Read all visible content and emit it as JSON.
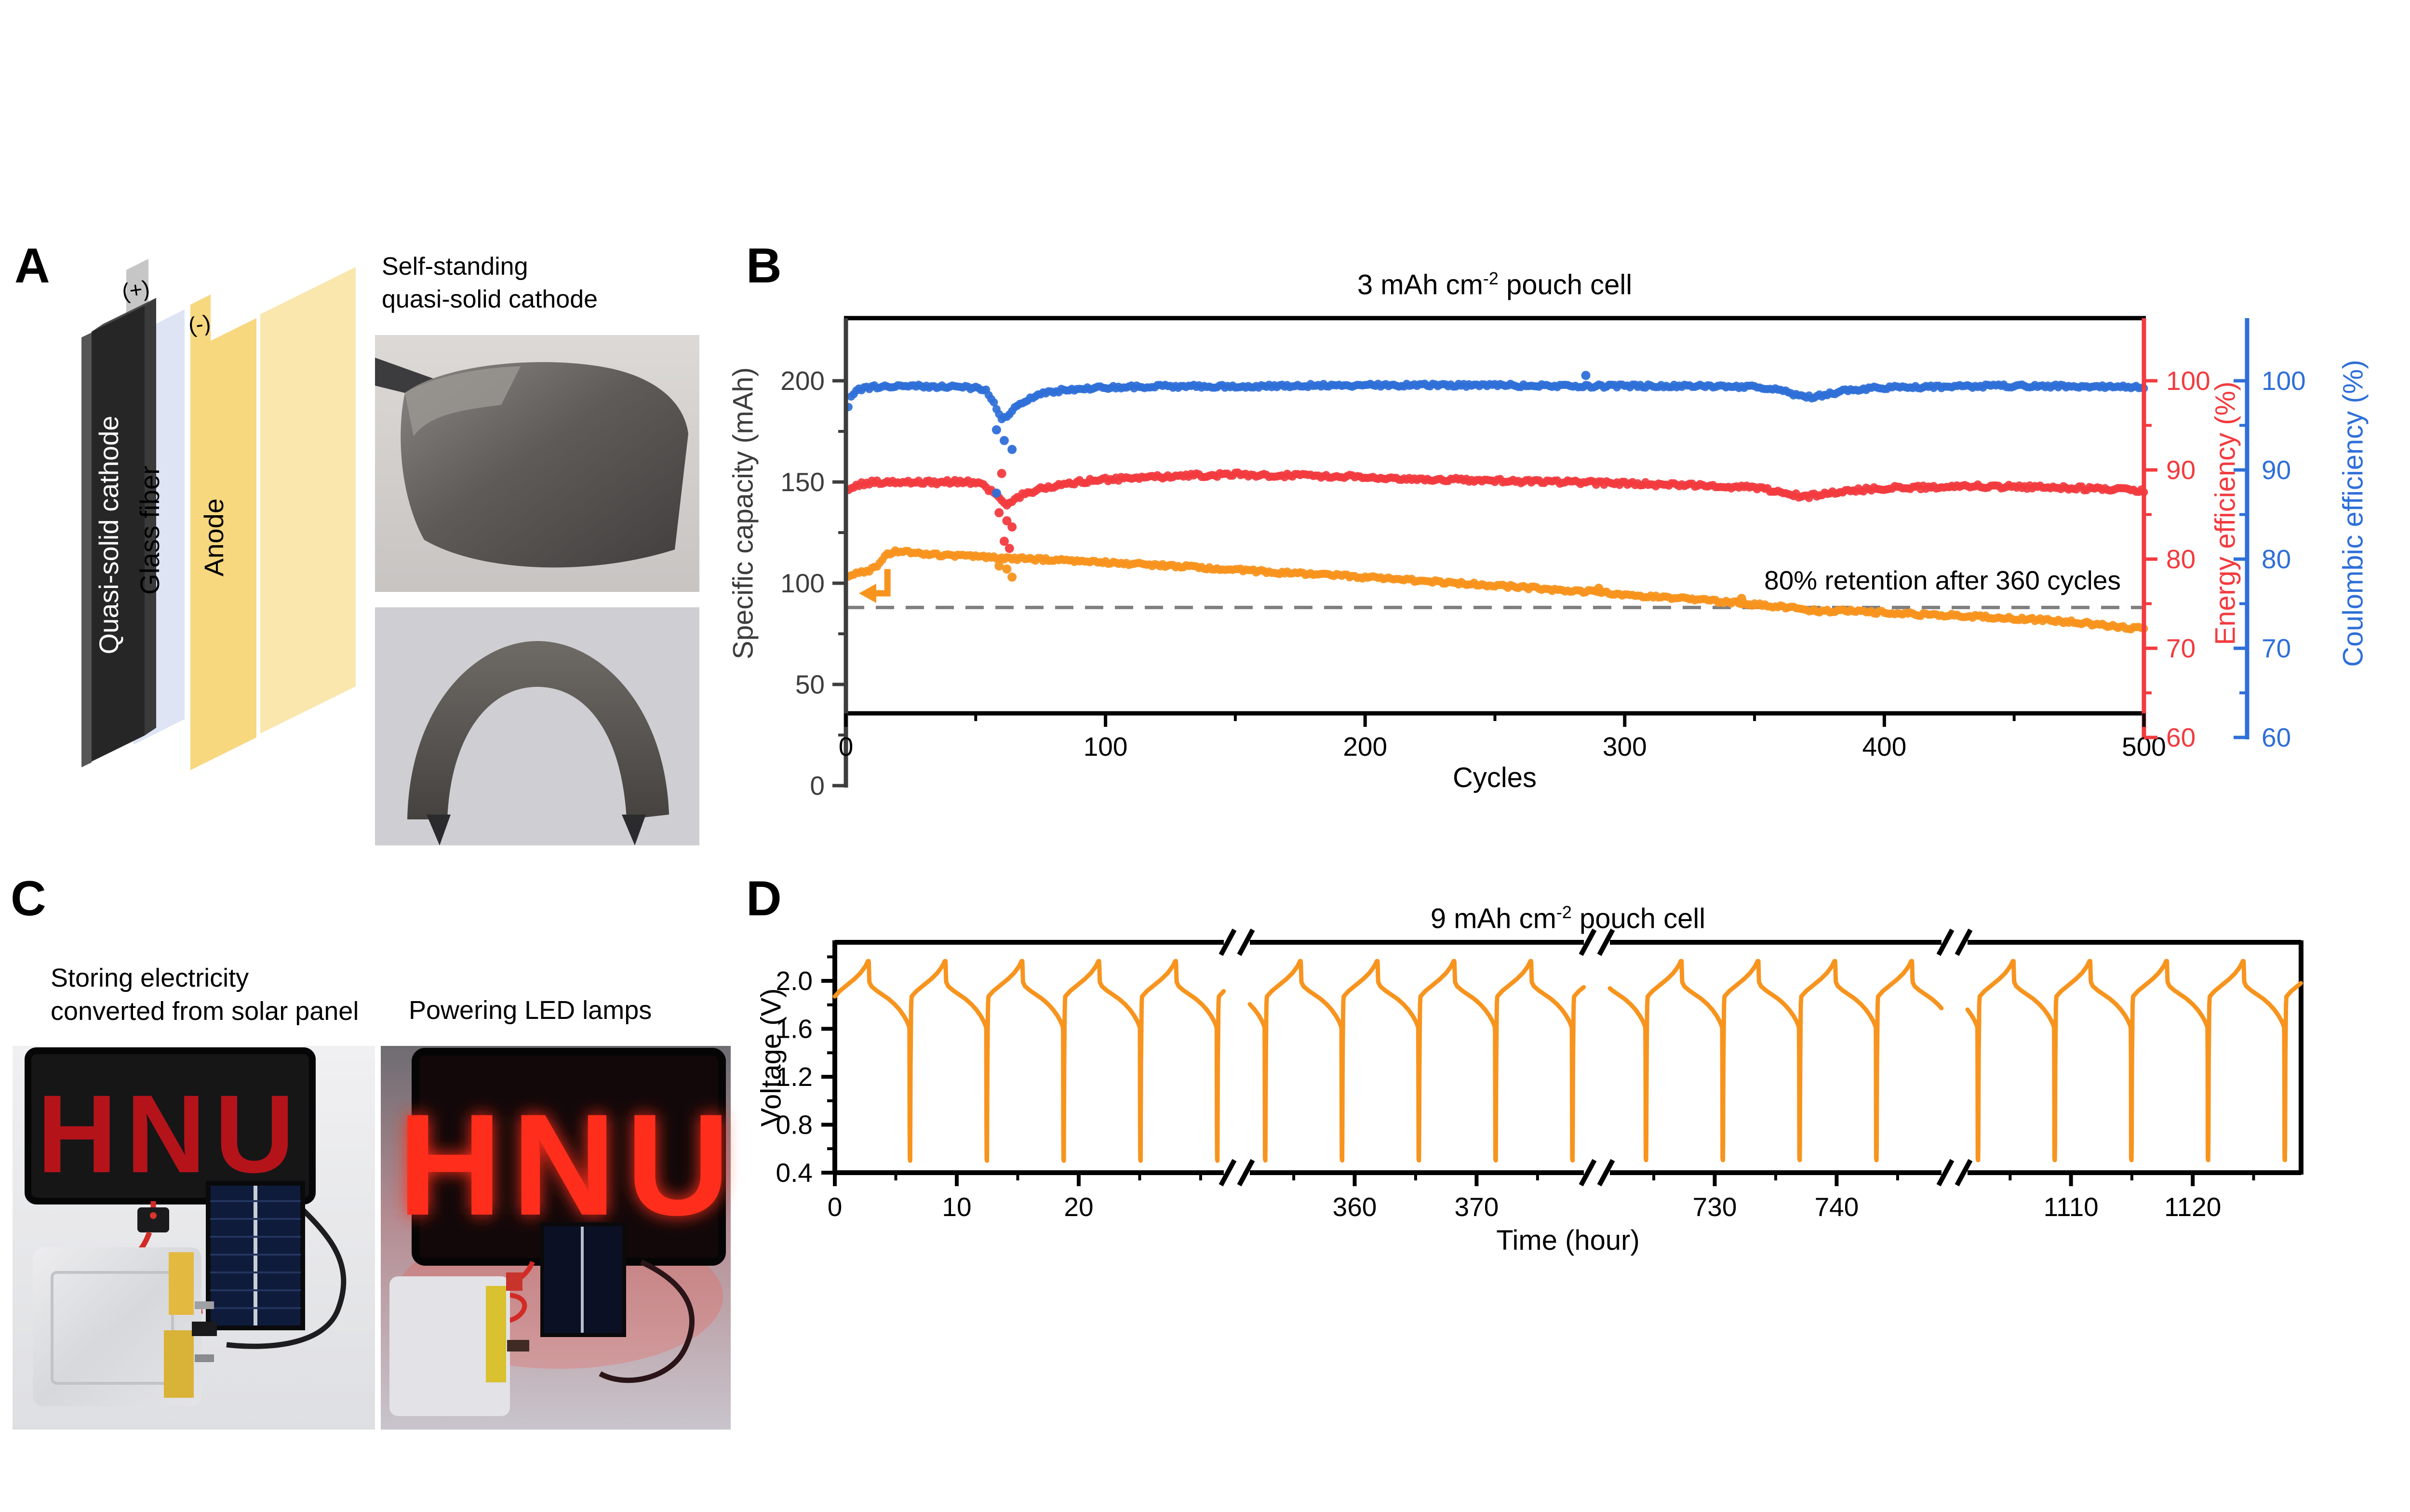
{
  "panels": {
    "a": {
      "letter": "A",
      "schematic": {
        "cathode": "Quasi-solid cathode",
        "separator": "Glass fiber",
        "anode": "Anode",
        "pos": "(+)",
        "neg": "(-)"
      },
      "caption1": "Self-standing",
      "caption2": "quasi-solid cathode"
    },
    "b": {
      "letter": "B"
    },
    "c": {
      "letter": "C",
      "caption1": "Storing electricity",
      "caption2": "converted from solar panel",
      "caption_right": "Powering LED lamps",
      "led_text": "HNU"
    },
    "d": {
      "letter": "D"
    }
  },
  "colors": {
    "orange": "#F7941E",
    "red": "#F23B3F",
    "blue": "#2F6FD8",
    "axis_gray": "#3D3D3D",
    "dashed_gray": "#7F7F7F"
  },
  "chart_data": [
    {
      "type": "scatter",
      "title_pre": "3 mAh cm",
      "title_sup": "-2",
      "title_post": " pouch cell",
      "xlabel": "Cycles",
      "xlim": [
        0,
        500
      ],
      "x_ticks": [
        0,
        100,
        200,
        300,
        400,
        500
      ],
      "x_minor": [
        50,
        150,
        250,
        350,
        450
      ],
      "y_left": {
        "label": "Specific capacity (mAh)",
        "ticks": [
          0,
          50,
          100,
          150,
          200
        ],
        "minor": [
          25,
          75,
          125,
          175
        ]
      },
      "y_right": {
        "label": "Energy efficiency (%)",
        "ticks": [
          60,
          70,
          80,
          90,
          100
        ],
        "minor": [
          65,
          75,
          85,
          95
        ]
      },
      "y_right2": {
        "label": "Coulombic efficiency (%)",
        "ticks": [
          60,
          70,
          80,
          90,
          100
        ],
        "minor": [
          65,
          75,
          85,
          95
        ]
      },
      "annotation": "80% retention  after 360 cycles",
      "dashed_line_value": 88,
      "arrow": {
        "cycle_tip": 5,
        "cycle_stem": 16,
        "value": 95,
        "stem_top_value": 107
      },
      "series": [
        {
          "name": "Specific capacity",
          "axis": "cap",
          "color": "#F7941E",
          "jitter": 0.8,
          "anchors": [
            [
              1,
              104
            ],
            [
              4,
              105
            ],
            [
              8,
              105.5
            ],
            [
              12,
              109
            ],
            [
              16,
              114
            ],
            [
              20,
              116
            ],
            [
              30,
              114.5
            ],
            [
              50,
              113
            ],
            [
              70,
              112
            ],
            [
              90,
              111
            ],
            [
              110,
              109.5
            ],
            [
              140,
              107.5
            ],
            [
              170,
              105
            ],
            [
              200,
              103
            ],
            [
              230,
              100.5
            ],
            [
              260,
              98
            ],
            [
              290,
              95.5
            ],
            [
              310,
              93.5
            ],
            [
              330,
              91.5
            ],
            [
              345,
              90
            ],
            [
              355,
              89
            ],
            [
              360,
              88.5
            ],
            [
              368,
              87.5
            ],
            [
              375,
              86
            ],
            [
              382,
              86.5
            ],
            [
              390,
              86
            ],
            [
              400,
              85.5
            ],
            [
              415,
              84.5
            ],
            [
              430,
              84
            ],
            [
              445,
              83
            ],
            [
              460,
              82
            ],
            [
              475,
              80.5
            ],
            [
              490,
              78.5
            ],
            [
              500,
              77.5
            ]
          ]
        },
        {
          "name": "Energy efficiency",
          "axis": "eff",
          "color": "#F23B3F",
          "jitter": 0.22,
          "anchors": [
            [
              1,
              87.6
            ],
            [
              3,
              88
            ],
            [
              6,
              88.4
            ],
            [
              10,
              88.6
            ],
            [
              20,
              88.7
            ],
            [
              35,
              88.6
            ],
            [
              45,
              88.7
            ],
            [
              52,
              88.4
            ],
            [
              56,
              87.6
            ],
            [
              59,
              86.8
            ],
            [
              62,
              86.2
            ],
            [
              65,
              86.8
            ],
            [
              70,
              87.4
            ],
            [
              76,
              88
            ],
            [
              85,
              88.5
            ],
            [
              95,
              88.8
            ],
            [
              105,
              89
            ],
            [
              120,
              89.2
            ],
            [
              135,
              89.4
            ],
            [
              150,
              89.5
            ],
            [
              165,
              89.4
            ],
            [
              180,
              89.3
            ],
            [
              200,
              89.2
            ],
            [
              220,
              89
            ],
            [
              240,
              88.9
            ],
            [
              260,
              88.7
            ],
            [
              280,
              88.6
            ],
            [
              300,
              88.5
            ],
            [
              320,
              88.3
            ],
            [
              335,
              88.2
            ],
            [
              350,
              88
            ],
            [
              358,
              87.6
            ],
            [
              365,
              87.2
            ],
            [
              370,
              87
            ],
            [
              376,
              87.3
            ],
            [
              383,
              87.6
            ],
            [
              392,
              87.8
            ],
            [
              405,
              88
            ],
            [
              420,
              88.1
            ],
            [
              435,
              88.2
            ],
            [
              450,
              88.1
            ],
            [
              465,
              88
            ],
            [
              480,
              87.9
            ],
            [
              490,
              87.8
            ],
            [
              500,
              87.7
            ]
          ]
        },
        {
          "name": "Coulombic efficiency",
          "axis": "eff",
          "color": "#2F6FD8",
          "jitter": 0.18,
          "anchors": [
            [
              1,
              97.0
            ],
            [
              2,
              98.3
            ],
            [
              5,
              99.0
            ],
            [
              10,
              99.3
            ],
            [
              25,
              99.4
            ],
            [
              40,
              99.3
            ],
            [
              50,
              99.2
            ],
            [
              54,
              99.0
            ],
            [
              57,
              97.6
            ],
            [
              60,
              95.6
            ],
            [
              63,
              96.4
            ],
            [
              67,
              97.4
            ],
            [
              72,
              98.2
            ],
            [
              78,
              98.7
            ],
            [
              85,
              99.0
            ],
            [
              95,
              99.2
            ],
            [
              110,
              99.3
            ],
            [
              130,
              99.4
            ],
            [
              160,
              99.4
            ],
            [
              190,
              99.5
            ],
            [
              220,
              99.5
            ],
            [
              250,
              99.5
            ],
            [
              280,
              99.4
            ],
            [
              310,
              99.4
            ],
            [
              335,
              99.4
            ],
            [
              350,
              99.3
            ],
            [
              360,
              99.0
            ],
            [
              366,
              98.4
            ],
            [
              372,
              98.2
            ],
            [
              378,
              98.5
            ],
            [
              385,
              98.9
            ],
            [
              395,
              99.2
            ],
            [
              410,
              99.3
            ],
            [
              440,
              99.4
            ],
            [
              470,
              99.4
            ],
            [
              500,
              99.3
            ]
          ]
        }
      ],
      "outliers": [
        {
          "axis": "eff",
          "color": "#2F6FD8",
          "x": 58,
          "y": 94.5
        },
        {
          "axis": "eff",
          "color": "#2F6FD8",
          "x": 61,
          "y": 93.3
        },
        {
          "axis": "eff",
          "color": "#2F6FD8",
          "x": 64,
          "y": 92.3
        },
        {
          "axis": "eff",
          "color": "#2F6FD8",
          "x": 58,
          "y": 87.4
        },
        {
          "axis": "eff",
          "color": "#2F6FD8",
          "x": 285,
          "y": 100.6
        },
        {
          "axis": "eff",
          "color": "#F23B3F",
          "x": 59,
          "y": 85.2
        },
        {
          "axis": "eff",
          "color": "#F23B3F",
          "x": 62,
          "y": 84.3
        },
        {
          "axis": "eff",
          "color": "#F23B3F",
          "x": 64,
          "y": 83.6
        },
        {
          "axis": "eff",
          "color": "#F23B3F",
          "x": 61,
          "y": 82.0
        },
        {
          "axis": "eff",
          "color": "#F23B3F",
          "x": 63,
          "y": 81.2
        },
        {
          "axis": "eff",
          "color": "#F23B3F",
          "x": 60,
          "y": 89.6
        },
        {
          "axis": "cap",
          "color": "#F7941E",
          "x": 59,
          "y": 108.5
        },
        {
          "axis": "cap",
          "color": "#F7941E",
          "x": 62,
          "y": 107
        },
        {
          "axis": "cap",
          "color": "#F7941E",
          "x": 64,
          "y": 103
        },
        {
          "axis": "cap",
          "color": "#F7941E",
          "x": 290,
          "y": 97.5
        },
        {
          "axis": "cap",
          "color": "#F7941E",
          "x": 345,
          "y": 92.5
        }
      ]
    },
    {
      "type": "line",
      "title_pre": "9 mAh cm",
      "title_sup": "-2",
      "title_post": " pouch cell",
      "xlabel": "Time (hour)",
      "ylabel": "Voltage (V)",
      "y_ticks": [
        0.4,
        0.8,
        1.2,
        1.6,
        2.0
      ],
      "y_minor": [
        0.6,
        1.0,
        1.4,
        1.8,
        2.2
      ],
      "ylim": [
        0.4,
        2.32
      ],
      "color": "#F7941E",
      "cycle_period_h": 6.3,
      "segments": [
        {
          "t0": 0,
          "t1": 31.9,
          "ticks": [
            0,
            10,
            20
          ],
          "minor": [
            5,
            15,
            25,
            30
          ]
        },
        {
          "t0": 351.4,
          "t1": 378.8,
          "ticks": [
            360,
            370
          ],
          "minor": [
            355,
            365,
            375
          ]
        },
        {
          "t0": 721.4,
          "t1": 748.6,
          "ticks": [
            730,
            740
          ],
          "minor": [
            725,
            735,
            745
          ]
        },
        {
          "t0": 1101.5,
          "t1": 1128.9,
          "ticks": [
            1110,
            1120
          ],
          "minor": [
            1105,
            1115,
            1125
          ]
        }
      ],
      "cycle_profile": [
        [
          0,
          1.87
        ],
        [
          0.4,
          1.915
        ],
        [
          1.0,
          1.965
        ],
        [
          1.6,
          2.015
        ],
        [
          2.1,
          2.065
        ],
        [
          2.5,
          2.12
        ],
        [
          2.72,
          2.165
        ],
        [
          2.78,
          2.165
        ],
        [
          2.83,
          1.99
        ],
        [
          3.0,
          1.955
        ],
        [
          3.4,
          1.92
        ],
        [
          3.9,
          1.885
        ],
        [
          4.4,
          1.85
        ],
        [
          4.9,
          1.805
        ],
        [
          5.3,
          1.76
        ],
        [
          5.65,
          1.71
        ],
        [
          5.9,
          1.665
        ],
        [
          6.05,
          1.63
        ],
        [
          6.12,
          1.605
        ],
        [
          6.14,
          0.52
        ],
        [
          6.18,
          0.5
        ],
        [
          6.21,
          1.3
        ],
        [
          6.26,
          1.8
        ],
        [
          6.3,
          1.87
        ]
      ]
    }
  ]
}
